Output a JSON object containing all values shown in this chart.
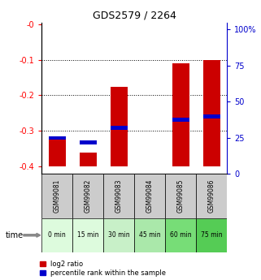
{
  "title": "GDS2579 / 2264",
  "categories": [
    "GSM99081",
    "GSM99082",
    "GSM99083",
    "GSM99084",
    "GSM99085",
    "GSM99086"
  ],
  "time_labels": [
    "0 min",
    "15 min",
    "30 min",
    "45 min",
    "60 min",
    "75 min"
  ],
  "time_colors": [
    "#ddfbdd",
    "#ddfbdd",
    "#c8f0c8",
    "#aae8aa",
    "#77dd77",
    "#55cc55"
  ],
  "log2_ratio_top": [
    -0.325,
    -0.36,
    -0.175,
    -0.399,
    -0.11,
    -0.1
  ],
  "log2_ratio_bottom": [
    -0.4,
    -0.4,
    -0.4,
    -0.4,
    -0.4,
    -0.4
  ],
  "percentile_rank": [
    20.0,
    17.0,
    27.0,
    0.0,
    33.0,
    35.0
  ],
  "ylim_left": [
    -0.42,
    0.005
  ],
  "ylim_right": [
    0,
    105
  ],
  "yticks_left": [
    -0.4,
    -0.3,
    -0.2,
    -0.1,
    0.0
  ],
  "ytick_labels_left": [
    "-0.4",
    "-0.3",
    "-0.2",
    "-0.1",
    "-0"
  ],
  "yticks_right": [
    0,
    25,
    50,
    75,
    100
  ],
  "ytick_labels_right": [
    "0",
    "25",
    "50",
    "75",
    "100%"
  ],
  "bar_color_red": "#cc0000",
  "bar_color_blue": "#0000cc",
  "bar_width": 0.55,
  "bg_color": "#ffffff",
  "label_area_color": "#cccccc",
  "legend_red": "log2 ratio",
  "legend_blue": "percentile rank within the sample"
}
